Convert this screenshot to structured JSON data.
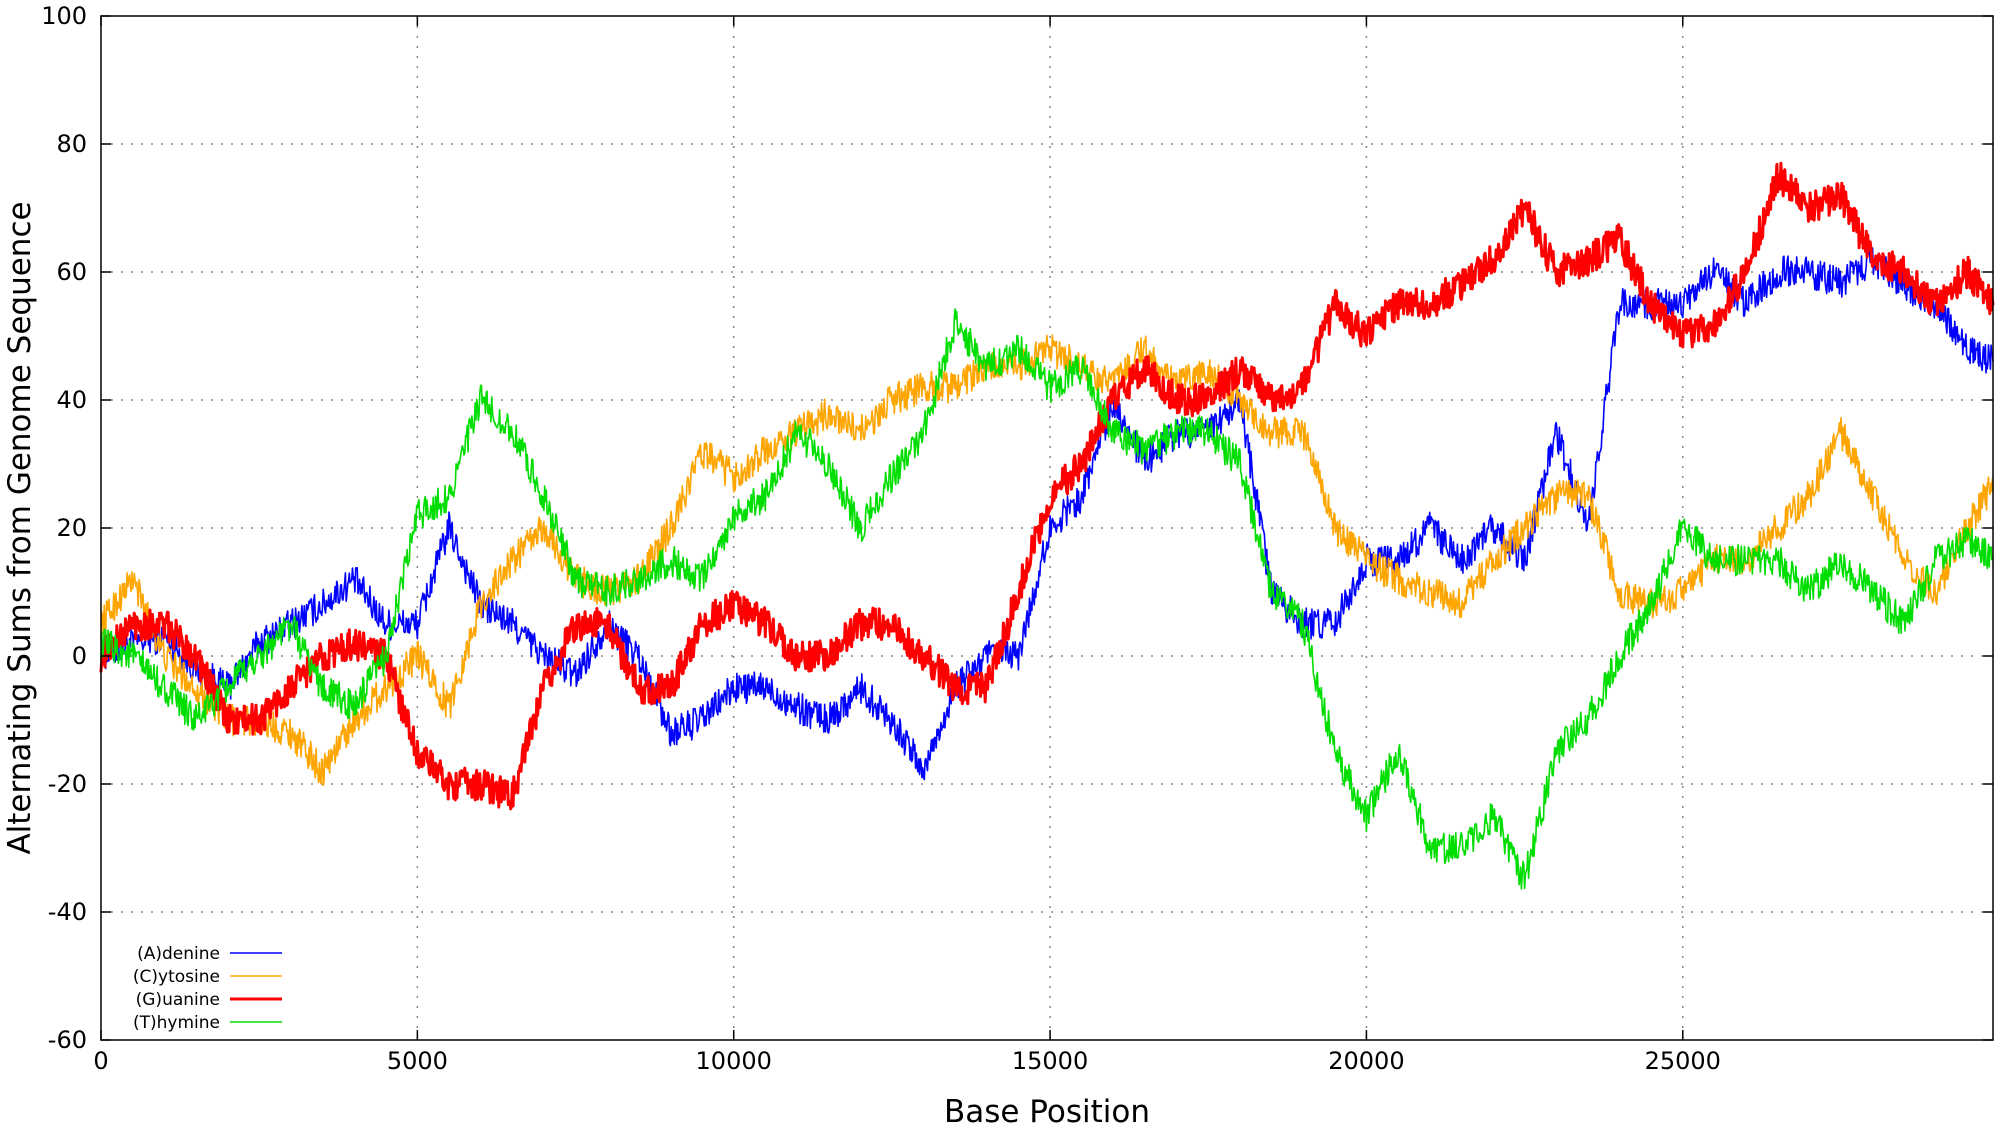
{
  "chart_data": {
    "type": "line",
    "title": "",
    "xlabel": "Base Position",
    "ylabel": "Alternating Sums from Genome Sequence",
    "xlim": [
      0,
      29903
    ],
    "ylim": [
      -60,
      100
    ],
    "xticks": [
      0,
      5000,
      10000,
      15000,
      20000,
      25000
    ],
    "xtick_labels": [
      "0",
      "5000",
      "10000",
      "15000",
      "20000",
      "25000"
    ],
    "yticks": [
      -60,
      -40,
      -20,
      0,
      20,
      40,
      60,
      80,
      100
    ],
    "ytick_labels": [
      "-60",
      "-40",
      "-20",
      "0",
      "20",
      "40",
      "60",
      "80",
      "100"
    ],
    "grid": true,
    "legend_position": "bottom-left",
    "series": [
      {
        "name": "(A)denine",
        "color": "#0000ff",
        "x": [
          0,
          500,
          1000,
          1500,
          2000,
          2500,
          3000,
          3500,
          4000,
          4500,
          5000,
          5500,
          6000,
          6500,
          7000,
          7500,
          8000,
          8500,
          9000,
          9500,
          10000,
          10500,
          11000,
          11500,
          12000,
          12500,
          13000,
          13500,
          14000,
          14500,
          15000,
          15500,
          16000,
          16500,
          17000,
          17500,
          18000,
          18500,
          19000,
          19500,
          20000,
          20500,
          21000,
          21500,
          22000,
          22500,
          23000,
          23500,
          24000,
          24500,
          25000,
          25500,
          26000,
          26500,
          27000,
          27500,
          28000,
          28500,
          29000,
          29500,
          29903
        ],
        "y": [
          0,
          2,
          3,
          -2,
          -5,
          2,
          5,
          8,
          12,
          5,
          5,
          20,
          8,
          5,
          0,
          -3,
          5,
          0,
          -12,
          -10,
          -5,
          -5,
          -8,
          -10,
          -5,
          -10,
          -18,
          -5,
          0,
          0,
          20,
          25,
          40,
          30,
          35,
          35,
          40,
          10,
          5,
          5,
          15,
          15,
          20,
          15,
          20,
          15,
          35,
          20,
          55,
          55,
          55,
          60,
          55,
          60,
          60,
          58,
          62,
          58,
          55,
          48,
          46
        ]
      },
      {
        "name": "(C)ytosine",
        "color": "#ffa500",
        "x": [
          0,
          500,
          1000,
          1500,
          2000,
          2500,
          3000,
          3500,
          4000,
          4500,
          5000,
          5500,
          6000,
          6500,
          7000,
          7500,
          8000,
          8500,
          9000,
          9500,
          10000,
          10500,
          11000,
          11500,
          12000,
          12500,
          13000,
          13500,
          14000,
          14500,
          15000,
          15500,
          16000,
          16500,
          17000,
          17500,
          18000,
          18500,
          19000,
          19500,
          20000,
          20500,
          21000,
          21500,
          22000,
          22500,
          23000,
          23500,
          24000,
          24500,
          25000,
          25500,
          26000,
          26500,
          27000,
          27500,
          28000,
          28500,
          29000,
          29500,
          29903
        ],
        "y": [
          5,
          12,
          0,
          -5,
          -10,
          -10,
          -12,
          -18,
          -10,
          -5,
          0,
          -8,
          8,
          15,
          20,
          12,
          10,
          12,
          20,
          32,
          28,
          32,
          35,
          38,
          35,
          40,
          42,
          42,
          45,
          45,
          48,
          45,
          42,
          48,
          42,
          45,
          40,
          35,
          35,
          20,
          15,
          12,
          10,
          8,
          15,
          20,
          25,
          25,
          10,
          8,
          10,
          15,
          15,
          20,
          25,
          35,
          25,
          15,
          10,
          20,
          27
        ]
      },
      {
        "name": "(G)uanine",
        "color": "#ff0000",
        "x": [
          0,
          500,
          1000,
          1500,
          2000,
          2500,
          3000,
          3500,
          4000,
          4500,
          5000,
          5500,
          6000,
          6500,
          7000,
          7500,
          8000,
          8500,
          9000,
          9500,
          10000,
          10500,
          11000,
          11500,
          12000,
          12500,
          13000,
          13500,
          14000,
          14500,
          15000,
          15500,
          16000,
          16500,
          17000,
          17500,
          18000,
          18500,
          19000,
          19500,
          20000,
          20500,
          21000,
          21500,
          22000,
          22500,
          23000,
          23500,
          24000,
          24500,
          25000,
          25500,
          26000,
          26500,
          27000,
          27500,
          28000,
          28500,
          29000,
          29500,
          29903
        ],
        "y": [
          0,
          5,
          5,
          0,
          -10,
          -10,
          -5,
          0,
          2,
          0,
          -15,
          -20,
          -20,
          -22,
          -5,
          5,
          5,
          -5,
          -5,
          5,
          8,
          5,
          0,
          0,
          5,
          5,
          0,
          -5,
          -5,
          10,
          25,
          30,
          40,
          45,
          40,
          40,
          45,
          40,
          42,
          55,
          50,
          55,
          55,
          58,
          62,
          70,
          60,
          62,
          65,
          55,
          50,
          52,
          60,
          75,
          70,
          72,
          62,
          60,
          55,
          60,
          55
        ]
      },
      {
        "name": "(T)hymine",
        "color": "#00dd00",
        "x": [
          0,
          500,
          1000,
          1500,
          2000,
          2500,
          3000,
          3500,
          4000,
          4500,
          5000,
          5500,
          6000,
          6500,
          7000,
          7500,
          8000,
          8500,
          9000,
          9500,
          10000,
          10500,
          11000,
          11500,
          12000,
          12500,
          13000,
          13500,
          14000,
          14500,
          15000,
          15500,
          16000,
          16500,
          17000,
          17500,
          18000,
          18500,
          19000,
          19500,
          20000,
          20500,
          21000,
          21500,
          22000,
          22500,
          23000,
          23500,
          24000,
          24500,
          25000,
          25500,
          26000,
          26500,
          27000,
          27500,
          28000,
          28500,
          29000,
          29500,
          29903
        ],
        "y": [
          2,
          0,
          -5,
          -10,
          -5,
          0,
          5,
          -5,
          -8,
          0,
          22,
          25,
          40,
          35,
          25,
          12,
          10,
          12,
          15,
          12,
          22,
          25,
          35,
          30,
          20,
          28,
          35,
          52,
          45,
          48,
          42,
          45,
          35,
          32,
          35,
          35,
          30,
          10,
          5,
          -15,
          -25,
          -15,
          -30,
          -30,
          -25,
          -35,
          -15,
          -10,
          0,
          8,
          20,
          15,
          15,
          15,
          10,
          15,
          10,
          5,
          15,
          18,
          15
        ]
      }
    ]
  }
}
